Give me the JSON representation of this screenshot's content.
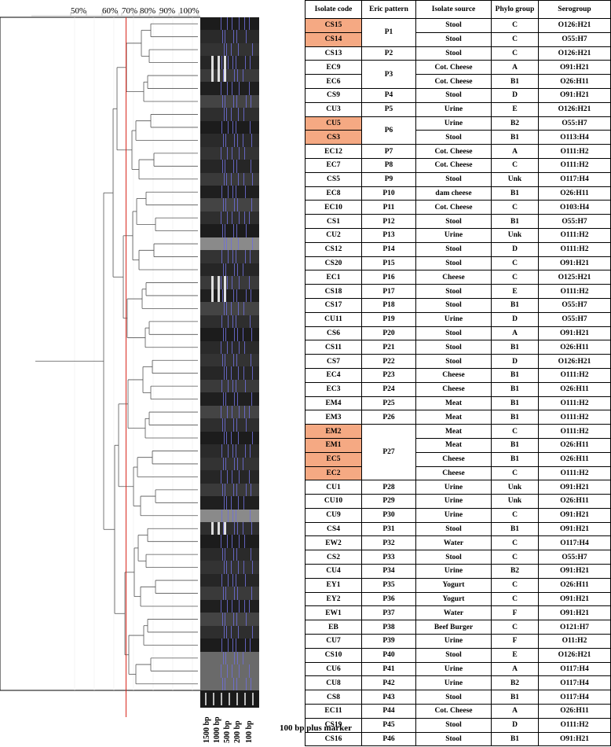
{
  "scale": {
    "labels": [
      "50%",
      "60%",
      "70%",
      "80%",
      "90%",
      "100%"
    ]
  },
  "table": {
    "headers": {
      "code": "Isolate code",
      "eric": "Eric pattern",
      "source": "Isolate source",
      "phylo": "Phylo group",
      "sero": "Serogroup"
    },
    "rows": [
      {
        "code": "CS15",
        "eric": "P1",
        "source": "Stool",
        "phylo": "C",
        "sero": "O126:H21",
        "hl": true
      },
      {
        "code": "CS14",
        "eric": "",
        "source": "Stool",
        "phylo": "C",
        "sero": "O55:H7",
        "hl": true
      },
      {
        "code": "CS13",
        "eric": "P2",
        "source": "Stool",
        "phylo": "C",
        "sero": "O126:H21",
        "hl": false
      },
      {
        "code": "EC9",
        "eric": "P3",
        "source": "Cot. Cheese",
        "phylo": "A",
        "sero": "O91:H21",
        "hl": false
      },
      {
        "code": "EC6",
        "eric": "",
        "source": "Cot. Cheese",
        "phylo": "B1",
        "sero": "O26:H11",
        "hl": false
      },
      {
        "code": "CS9",
        "eric": "P4",
        "source": "Stool",
        "phylo": "D",
        "sero": "O91:H21",
        "hl": false
      },
      {
        "code": "CU3",
        "eric": "P5",
        "source": "Urine",
        "phylo": "E",
        "sero": "O126:H21",
        "hl": false
      },
      {
        "code": "CU5",
        "eric": "P6",
        "source": "Urine",
        "phylo": "B2",
        "sero": "O55:H7",
        "hl": true
      },
      {
        "code": "CS3",
        "eric": "",
        "source": "Stool",
        "phylo": "B1",
        "sero": "O113:H4",
        "hl": true
      },
      {
        "code": "EC12",
        "eric": "P7",
        "source": "Cot. Cheese",
        "phylo": "A",
        "sero": "O111:H2",
        "hl": false
      },
      {
        "code": "EC7",
        "eric": "P8",
        "source": "Cot. Cheese",
        "phylo": "C",
        "sero": "O111:H2",
        "hl": false
      },
      {
        "code": "CS5",
        "eric": "P9",
        "source": "Stool",
        "phylo": "Unk",
        "sero": "O117:H4",
        "hl": false
      },
      {
        "code": "EC8",
        "eric": "P10",
        "source": "dam cheese",
        "phylo": "B1",
        "sero": "O26:H11",
        "hl": false
      },
      {
        "code": "EC10",
        "eric": "P11",
        "source": "Cot. Cheese",
        "phylo": "C",
        "sero": "O103:H4",
        "hl": false
      },
      {
        "code": "CS1",
        "eric": "P12",
        "source": "Stool",
        "phylo": "B1",
        "sero": "O55:H7",
        "hl": false
      },
      {
        "code": "CU2",
        "eric": "P13",
        "source": "Urine",
        "phylo": "Unk",
        "sero": "O111:H2",
        "hl": false
      },
      {
        "code": "CS12",
        "eric": "P14",
        "source": "Stool",
        "phylo": "D",
        "sero": "O111:H2",
        "hl": false
      },
      {
        "code": "CS20",
        "eric": "P15",
        "source": "Stool",
        "phylo": "C",
        "sero": "O91:H21",
        "hl": false
      },
      {
        "code": "EC1",
        "eric": "P16",
        "source": "Cheese",
        "phylo": "C",
        "sero": "O125:H21",
        "hl": false
      },
      {
        "code": "CS18",
        "eric": "P17",
        "source": "Stool",
        "phylo": "E",
        "sero": "O111:H2",
        "hl": false
      },
      {
        "code": "CS17",
        "eric": "P18",
        "source": "Stool",
        "phylo": "B1",
        "sero": "O55:H7",
        "hl": false
      },
      {
        "code": "CU11",
        "eric": "P19",
        "source": "Urine",
        "phylo": "D",
        "sero": "O55:H7",
        "hl": false
      },
      {
        "code": "CS6",
        "eric": "P20",
        "source": "Stool",
        "phylo": "A",
        "sero": "O91:H21",
        "hl": false
      },
      {
        "code": "CS11",
        "eric": "P21",
        "source": "Stool",
        "phylo": "B1",
        "sero": "O26:H11",
        "hl": false
      },
      {
        "code": "CS7",
        "eric": "P22",
        "source": "Stool",
        "phylo": "D",
        "sero": "O126:H21",
        "hl": false
      },
      {
        "code": "EC4",
        "eric": "P23",
        "source": "Cheese",
        "phylo": "B1",
        "sero": "O111:H2",
        "hl": false
      },
      {
        "code": "EC3",
        "eric": "P24",
        "source": "Cheese",
        "phylo": "B1",
        "sero": "O26:H11",
        "hl": false
      },
      {
        "code": "EM4",
        "eric": "P25",
        "source": "Meat",
        "phylo": "B1",
        "sero": "O111:H2",
        "hl": false
      },
      {
        "code": "EM3",
        "eric": "P26",
        "source": "Meat",
        "phylo": "B1",
        "sero": "O111:H2",
        "hl": false
      },
      {
        "code": "EM2",
        "eric": "P27",
        "source": "Meat",
        "phylo": "C",
        "sero": "O111:H2",
        "hl": true
      },
      {
        "code": "EM1",
        "eric": "",
        "source": "Meat",
        "phylo": "B1",
        "sero": "O26:H11",
        "hl": true
      },
      {
        "code": "EC5",
        "eric": "",
        "source": "Cheese",
        "phylo": "B1",
        "sero": "O26:H11",
        "hl": true
      },
      {
        "code": "EC2",
        "eric": "",
        "source": "Cheese",
        "phylo": "C",
        "sero": "O111:H2",
        "hl": true
      },
      {
        "code": "CU1",
        "eric": "P28",
        "source": "Urine",
        "phylo": "Unk",
        "sero": "O91:H21",
        "hl": false
      },
      {
        "code": "CU10",
        "eric": "P29",
        "source": "Urine",
        "phylo": "Unk",
        "sero": "O26:H11",
        "hl": false
      },
      {
        "code": "CU9",
        "eric": "P30",
        "source": "Urine",
        "phylo": "C",
        "sero": "O91:H21",
        "hl": false
      },
      {
        "code": "CS4",
        "eric": "P31",
        "source": "Stool",
        "phylo": "B1",
        "sero": "O91:H21",
        "hl": false
      },
      {
        "code": "EW2",
        "eric": "P32",
        "source": "Water",
        "phylo": "C",
        "sero": "O117:H4",
        "hl": false
      },
      {
        "code": "CS2",
        "eric": "P33",
        "source": "Stool",
        "phylo": "C",
        "sero": "O55:H7",
        "hl": false
      },
      {
        "code": "CU4",
        "eric": "P34",
        "source": "Urine",
        "phylo": "B2",
        "sero": "O91:H21",
        "hl": false
      },
      {
        "code": "EY1",
        "eric": "P35",
        "source": "Yogurt",
        "phylo": "C",
        "sero": "O26:H11",
        "hl": false
      },
      {
        "code": "EY2",
        "eric": "P36",
        "source": "Yogurt",
        "phylo": "C",
        "sero": "O91:H21",
        "hl": false
      },
      {
        "code": "EW1",
        "eric": "P37",
        "source": "Water",
        "phylo": "F",
        "sero": "O91:H21",
        "hl": false
      },
      {
        "code": "EB",
        "eric": "P38",
        "source": "Beef Burger",
        "phylo": "C",
        "sero": "O121:H7",
        "hl": false
      },
      {
        "code": "CU7",
        "eric": "P39",
        "source": "Urine",
        "phylo": "F",
        "sero": "O11:H2",
        "hl": false
      },
      {
        "code": "CS10",
        "eric": "P40",
        "source": "Stool",
        "phylo": "E",
        "sero": "O126:H21",
        "hl": false
      },
      {
        "code": "CU6",
        "eric": "P41",
        "source": "Urine",
        "phylo": "A",
        "sero": "O117:H4",
        "hl": false
      },
      {
        "code": "CU8",
        "eric": "P42",
        "source": "Urine",
        "phylo": "B2",
        "sero": "O117:H4",
        "hl": false
      },
      {
        "code": "CS8",
        "eric": "P43",
        "source": "Stool",
        "phylo": "B1",
        "sero": "O117:H4",
        "hl": false
      },
      {
        "code": "EC11",
        "eric": "P44",
        "source": "Cot. Cheese",
        "phylo": "A",
        "sero": "O26:H11",
        "hl": false
      },
      {
        "code": "CS19",
        "eric": "P45",
        "source": "Stool",
        "phylo": "D",
        "sero": "O111:H2",
        "hl": false
      },
      {
        "code": "CS16",
        "eric": "P46",
        "source": "Stool",
        "phylo": "B1",
        "sero": "O91:H21",
        "hl": false
      }
    ]
  },
  "marker": {
    "bands": [
      "1500 bp",
      "1000 bp",
      "500 bp",
      "200 bp",
      "100 bp"
    ],
    "caption": "100 bp plus marker"
  },
  "colors": {
    "highlight": "#f5a983",
    "cutoff_line": "#d9261c",
    "gel_band": "#6f6fd8"
  }
}
